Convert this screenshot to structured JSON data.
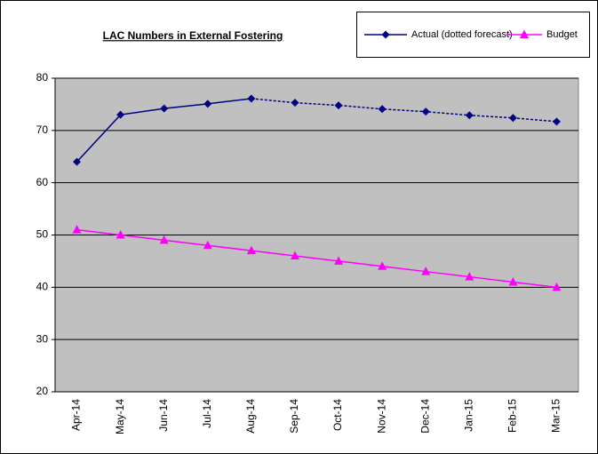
{
  "chart_data": {
    "type": "line",
    "title": "LAC Numbers in External Fostering",
    "categories": [
      "Apr-14",
      "May-14",
      "Jun-14",
      "Jul-14",
      "Aug-14",
      "Sep-14",
      "Oct-14",
      "Nov-14",
      "Dec-14",
      "Jan-15",
      "Feb-15",
      "Mar-15"
    ],
    "series": [
      {
        "name": "Actual (dotted forecast)",
        "color": "#000080",
        "marker": "diamond",
        "forecast_start_index": 4,
        "values": [
          64,
          73,
          74.2,
          75.1,
          76.1,
          75.3,
          74.8,
          74.1,
          73.6,
          72.9,
          72.4,
          71.7
        ]
      },
      {
        "name": "Budget",
        "color": "#ff00ff",
        "marker": "triangle",
        "values": [
          51,
          50,
          49,
          48,
          47,
          46,
          45,
          44,
          43,
          42,
          41,
          40
        ]
      }
    ],
    "ylim": [
      20,
      80
    ],
    "yticks": [
      20,
      30,
      40,
      50,
      60,
      70,
      80
    ],
    "grid": true,
    "legend": "top-right"
  }
}
